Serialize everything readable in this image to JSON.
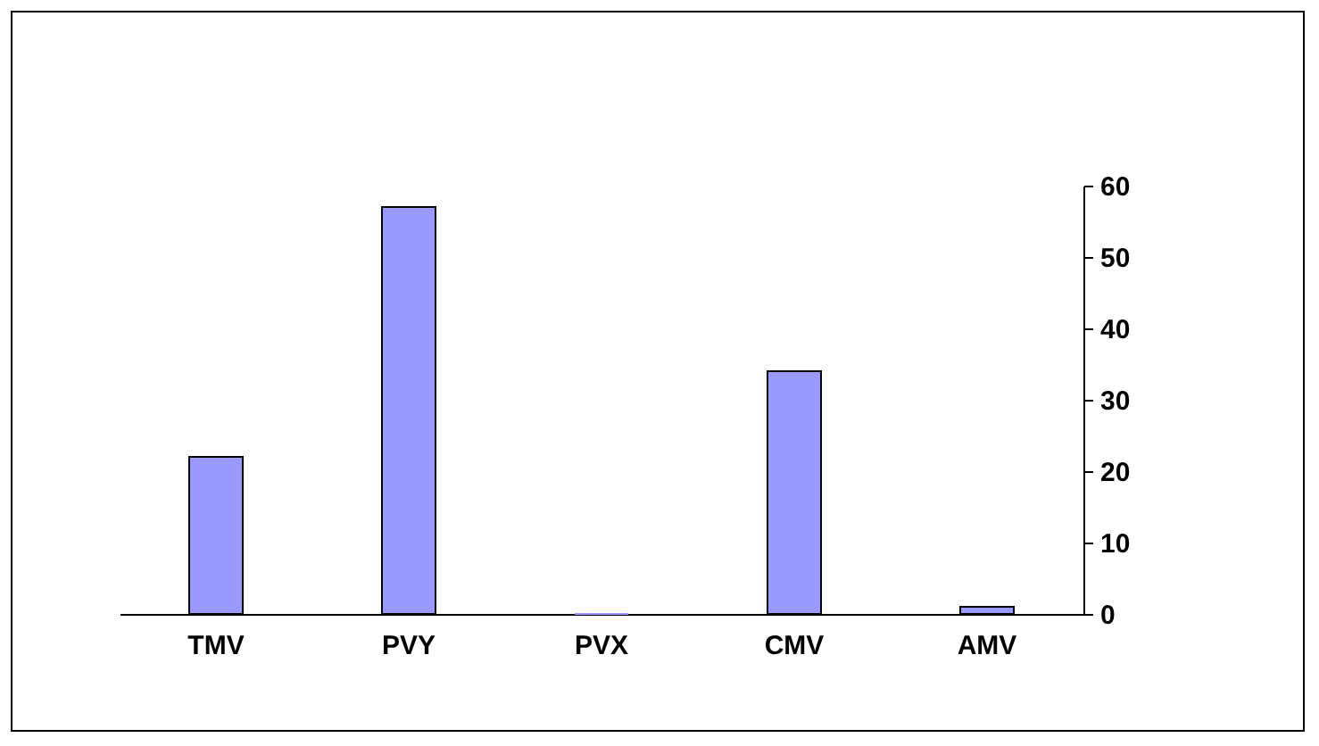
{
  "chart_data": {
    "type": "bar",
    "categories": [
      "TMV",
      "PVY",
      "PVX",
      "CMV",
      "AMV"
    ],
    "values": [
      22,
      57,
      0,
      34,
      1
    ],
    "color": "#9999ff",
    "ylim": [
      0,
      60
    ],
    "yticks": [
      0,
      10,
      20,
      30,
      40,
      50,
      60
    ],
    "grid": false
  }
}
